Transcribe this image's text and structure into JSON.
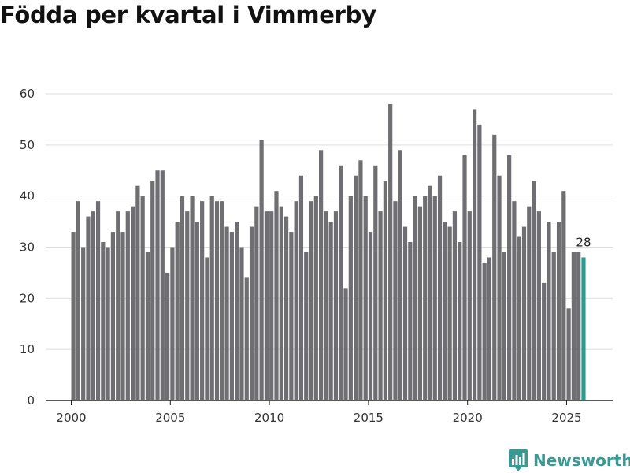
{
  "title": "Födda per kvartal i Vimmerby",
  "brand": {
    "name": "Newsworthy",
    "icon": "bar-chart-logo-icon",
    "color": "#3a9a93"
  },
  "chart_data": {
    "type": "bar",
    "title": "Födda per kvartal i Vimmerby",
    "xlabel": "",
    "ylabel": "",
    "ylim": [
      0,
      60
    ],
    "yticks": [
      0,
      10,
      20,
      30,
      40,
      50,
      60
    ],
    "xticks": [
      "2000",
      "2005",
      "2010",
      "2015",
      "2020",
      "2025"
    ],
    "grid": true,
    "bar_color": "#6e6e73",
    "highlight_color": "#2a9d8f",
    "highlight_label": "28",
    "start": {
      "year": 2000,
      "quarter": 1
    },
    "values": [
      33,
      39,
      30,
      36,
      37,
      39,
      31,
      30,
      33,
      37,
      33,
      37,
      38,
      42,
      40,
      29,
      43,
      45,
      45,
      25,
      30,
      35,
      40,
      37,
      40,
      35,
      39,
      28,
      40,
      39,
      39,
      34,
      33,
      35,
      30,
      24,
      34,
      38,
      51,
      37,
      37,
      41,
      38,
      36,
      33,
      39,
      44,
      29,
      39,
      40,
      49,
      37,
      35,
      37,
      46,
      22,
      40,
      44,
      47,
      40,
      33,
      46,
      37,
      43,
      58,
      39,
      49,
      34,
      31,
      40,
      38,
      40,
      42,
      40,
      44,
      35,
      34,
      37,
      31,
      48,
      37,
      57,
      54,
      27,
      28,
      52,
      44,
      29,
      48,
      39,
      32,
      34,
      38,
      43,
      37,
      23,
      35,
      29,
      35,
      41,
      18,
      29,
      29,
      28
    ]
  }
}
